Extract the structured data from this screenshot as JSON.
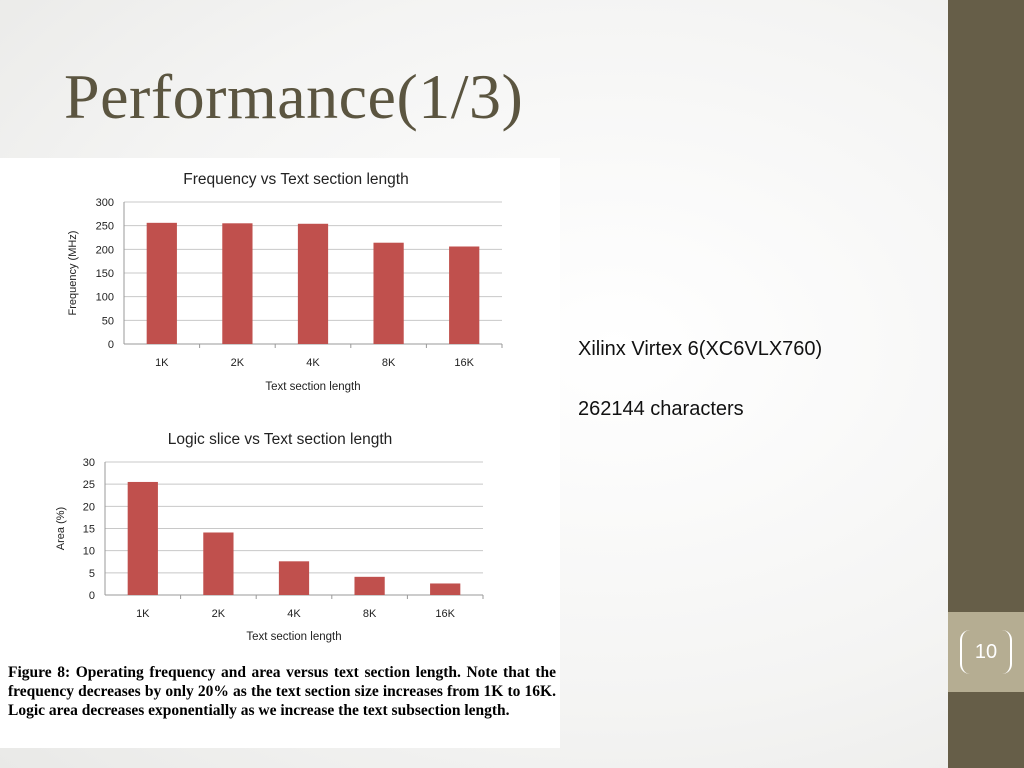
{
  "slide": {
    "title": "Performance(1/3)",
    "page_number": "10",
    "info_lines": [
      "Xilinx Virtex 6(XC6VLX760)",
      "262144  characters"
    ],
    "caption": "Figure 8: Operating frequency and area versus text section length. Note that the frequency decreases by only 20% as the text section size increases from 1K to 16K. Logic area decreases exponentially as we increase the text subsection length.",
    "colors": {
      "sidebar": "#665e48",
      "page_box": "#b5ad92",
      "bar": "#c0504d",
      "title": "#5b5540"
    }
  },
  "chart_data": [
    {
      "type": "bar",
      "title": "Frequency vs Text section length",
      "xlabel": "Text section length",
      "ylabel": "Frequency (MHz)",
      "categories": [
        "1K",
        "2K",
        "4K",
        "8K",
        "16K"
      ],
      "values": [
        256,
        255,
        254,
        214,
        206
      ],
      "ylim": [
        0,
        300
      ],
      "yticks": [
        "0",
        "50",
        "100",
        "150",
        "200",
        "250",
        "300"
      ],
      "grid": true,
      "color": "#c0504d"
    },
    {
      "type": "bar",
      "title": "Logic slice vs Text section length",
      "xlabel": "Text section length",
      "ylabel": "Area (%)",
      "categories": [
        "1K",
        "2K",
        "4K",
        "8K",
        "16K"
      ],
      "values": [
        25.5,
        14.1,
        7.6,
        4.1,
        2.6
      ],
      "ylim": [
        0,
        30
      ],
      "yticks": [
        "0",
        "5",
        "10",
        "15",
        "20",
        "25",
        "30"
      ],
      "grid": true,
      "color": "#c0504d"
    }
  ]
}
